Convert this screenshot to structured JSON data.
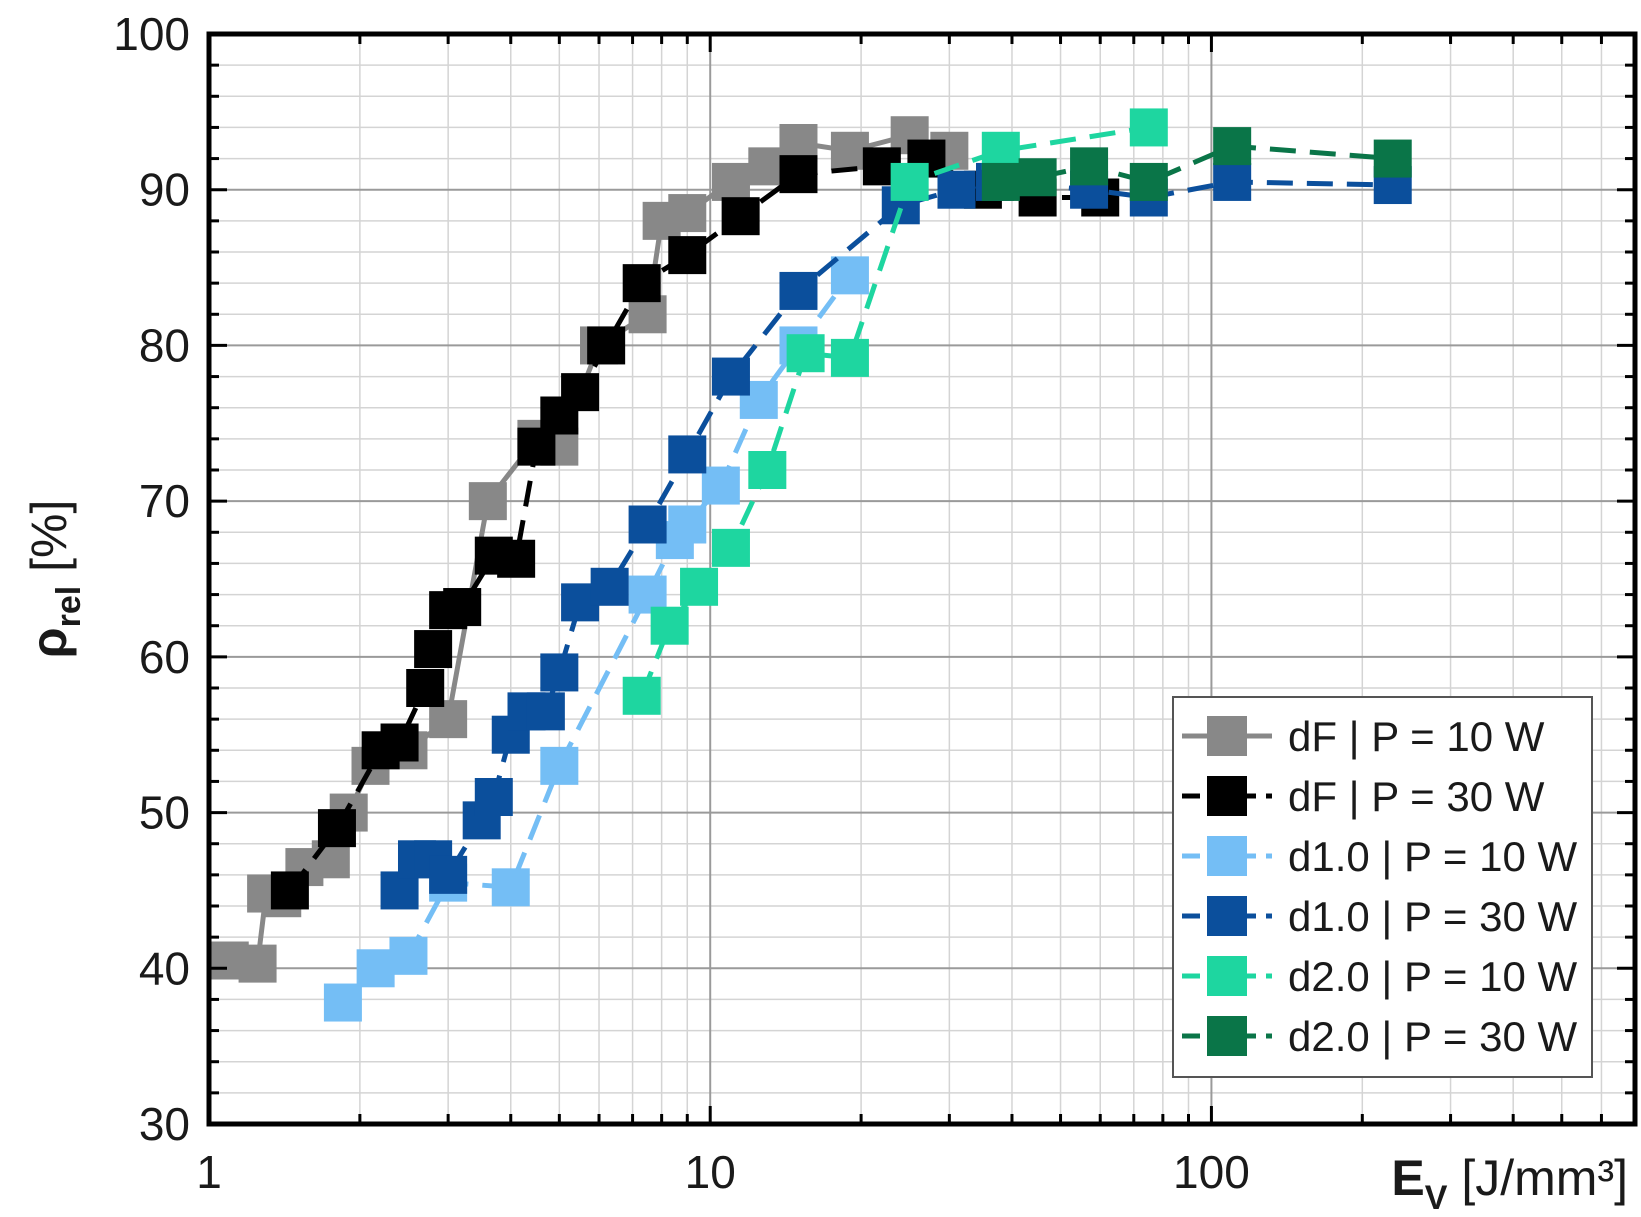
{
  "chart_data": {
    "type": "scatter",
    "xscale": "log",
    "xlim": [
      1,
      700
    ],
    "ylim": [
      30,
      100
    ],
    "grid": true,
    "legend_position": "bottom-right",
    "x_ticks": [
      1,
      10,
      100
    ],
    "x_tick_labels": [
      "1",
      "10",
      "100"
    ],
    "y_ticks": [
      30,
      40,
      50,
      60,
      70,
      80,
      90,
      100
    ],
    "y_tick_labels": [
      "30",
      "40",
      "50",
      "60",
      "70",
      "80",
      "90",
      "100"
    ],
    "xlabel": {
      "symbol": "E",
      "sub": "V",
      "unit": " [J/mm³]"
    },
    "ylabel": {
      "symbol": "ρ",
      "sub": "rel",
      "unit": " [%]"
    },
    "series": [
      {
        "name": "dF | P = 10 W",
        "color": "#888888",
        "line": "solid",
        "points": [
          [
            1.1,
            40.5
          ],
          [
            1.25,
            40.3
          ],
          [
            1.3,
            44.8
          ],
          [
            1.4,
            44.5
          ],
          [
            1.55,
            46.5
          ],
          [
            1.75,
            47.0
          ],
          [
            1.9,
            50.0
          ],
          [
            2.1,
            53.0
          ],
          [
            2.4,
            54.5
          ],
          [
            2.5,
            54.0
          ],
          [
            3.0,
            56.0
          ],
          [
            3.6,
            70.0
          ],
          [
            4.5,
            74.0
          ],
          [
            5.0,
            73.5
          ],
          [
            6.0,
            80.0
          ],
          [
            7.5,
            82.0
          ],
          [
            8.0,
            88.0
          ],
          [
            9.0,
            88.5
          ],
          [
            11.0,
            90.5
          ],
          [
            13.0,
            91.5
          ],
          [
            15.0,
            93.0
          ],
          [
            19.0,
            92.5
          ],
          [
            25.0,
            93.5
          ],
          [
            30.0,
            92.5
          ]
        ]
      },
      {
        "name": "dF | P = 30 W",
        "color": "#000000",
        "line": "dash",
        "points": [
          [
            1.45,
            45.0
          ],
          [
            1.8,
            49.0
          ],
          [
            2.2,
            54.0
          ],
          [
            2.4,
            54.5
          ],
          [
            2.7,
            58.0
          ],
          [
            2.8,
            60.5
          ],
          [
            3.0,
            63.0
          ],
          [
            3.2,
            63.2
          ],
          [
            3.7,
            66.5
          ],
          [
            4.1,
            66.3
          ],
          [
            4.5,
            73.5
          ],
          [
            5.0,
            75.5
          ],
          [
            5.5,
            77.0
          ],
          [
            6.2,
            80.0
          ],
          [
            7.3,
            84.0
          ],
          [
            9.0,
            85.8
          ],
          [
            11.5,
            88.3
          ],
          [
            15.0,
            91.0
          ],
          [
            22.0,
            91.5
          ],
          [
            27.0,
            92.0
          ],
          [
            35.0,
            90.0
          ],
          [
            45.0,
            89.5
          ],
          [
            60.0,
            89.5
          ]
        ]
      },
      {
        "name": "d1.0 | P = 10 W",
        "color": "#74bef5",
        "line": "dash",
        "points": [
          [
            1.85,
            37.8
          ],
          [
            2.15,
            40.0
          ],
          [
            2.5,
            40.8
          ],
          [
            3.0,
            45.5
          ],
          [
            4.0,
            45.2
          ],
          [
            5.0,
            53.0
          ],
          [
            7.5,
            64.0
          ],
          [
            8.5,
            67.5
          ],
          [
            9.0,
            68.5
          ],
          [
            10.5,
            71.0
          ],
          [
            12.5,
            76.5
          ],
          [
            15.0,
            80.0
          ],
          [
            19.0,
            84.5
          ]
        ]
      },
      {
        "name": "d1.0 | P = 30 W",
        "color": "#0b4f9c",
        "line": "dash",
        "points": [
          [
            2.4,
            45.0
          ],
          [
            2.6,
            47.0
          ],
          [
            2.8,
            47.0
          ],
          [
            3.0,
            46.0
          ],
          [
            3.5,
            49.5
          ],
          [
            3.7,
            51.0
          ],
          [
            4.0,
            55.0
          ],
          [
            4.3,
            56.5
          ],
          [
            4.7,
            56.5
          ],
          [
            5.0,
            59.0
          ],
          [
            5.5,
            63.5
          ],
          [
            6.3,
            64.5
          ],
          [
            7.5,
            68.5
          ],
          [
            9.0,
            73.0
          ],
          [
            11.0,
            78.0
          ],
          [
            15.0,
            83.5
          ],
          [
            24.0,
            89.0
          ],
          [
            31.0,
            90.0
          ],
          [
            37.0,
            90.5
          ],
          [
            57.0,
            90.0
          ],
          [
            75.0,
            89.5
          ],
          [
            110.0,
            90.5
          ],
          [
            230.0,
            90.3
          ]
        ]
      },
      {
        "name": "d2.0 | P = 10 W",
        "color": "#1ed6a0",
        "line": "dash",
        "points": [
          [
            7.3,
            57.5
          ],
          [
            8.3,
            62.0
          ],
          [
            9.5,
            64.5
          ],
          [
            11.0,
            67.0
          ],
          [
            13.0,
            72.0
          ],
          [
            15.5,
            79.5
          ],
          [
            19.0,
            79.2
          ],
          [
            25.0,
            90.5
          ],
          [
            38.0,
            92.5
          ],
          [
            75.0,
            94.0
          ]
        ]
      },
      {
        "name": "d2.0 | P = 30 W",
        "color": "#0a7548",
        "line": "dash",
        "points": [
          [
            38.0,
            90.5
          ],
          [
            45.0,
            90.8
          ],
          [
            57.0,
            91.5
          ],
          [
            75.0,
            90.5
          ],
          [
            110.0,
            92.8
          ],
          [
            230.0,
            92.0
          ]
        ]
      }
    ]
  }
}
